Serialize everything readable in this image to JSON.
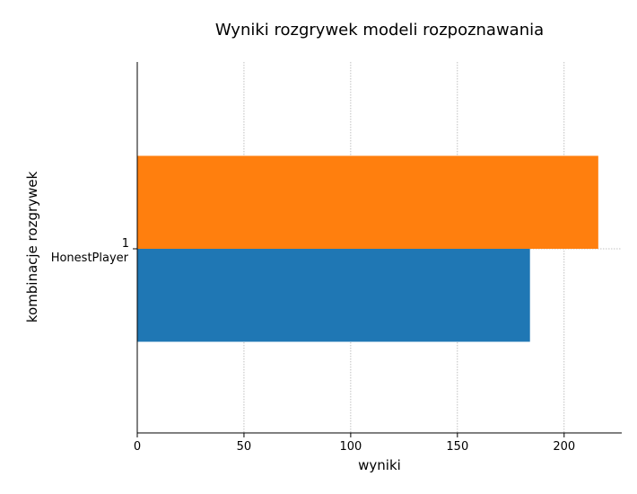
{
  "chart_data": {
    "type": "bar",
    "orientation": "horizontal",
    "title": "Wyniki rozgrywek modeli rozpoznawania",
    "xlabel": "wyniki",
    "ylabel": "kombinacje rozgrywek",
    "categories": [
      {
        "index_label": "1",
        "name": "HonestPlayer"
      }
    ],
    "series": [
      {
        "values": [
          184
        ],
        "color": "#1f77b4"
      },
      {
        "values": [
          216
        ],
        "color": "#ff7f0e"
      }
    ],
    "xlim": [
      0,
      227
    ],
    "xticks": [
      0,
      50,
      100,
      150,
      200
    ],
    "grid": true
  }
}
